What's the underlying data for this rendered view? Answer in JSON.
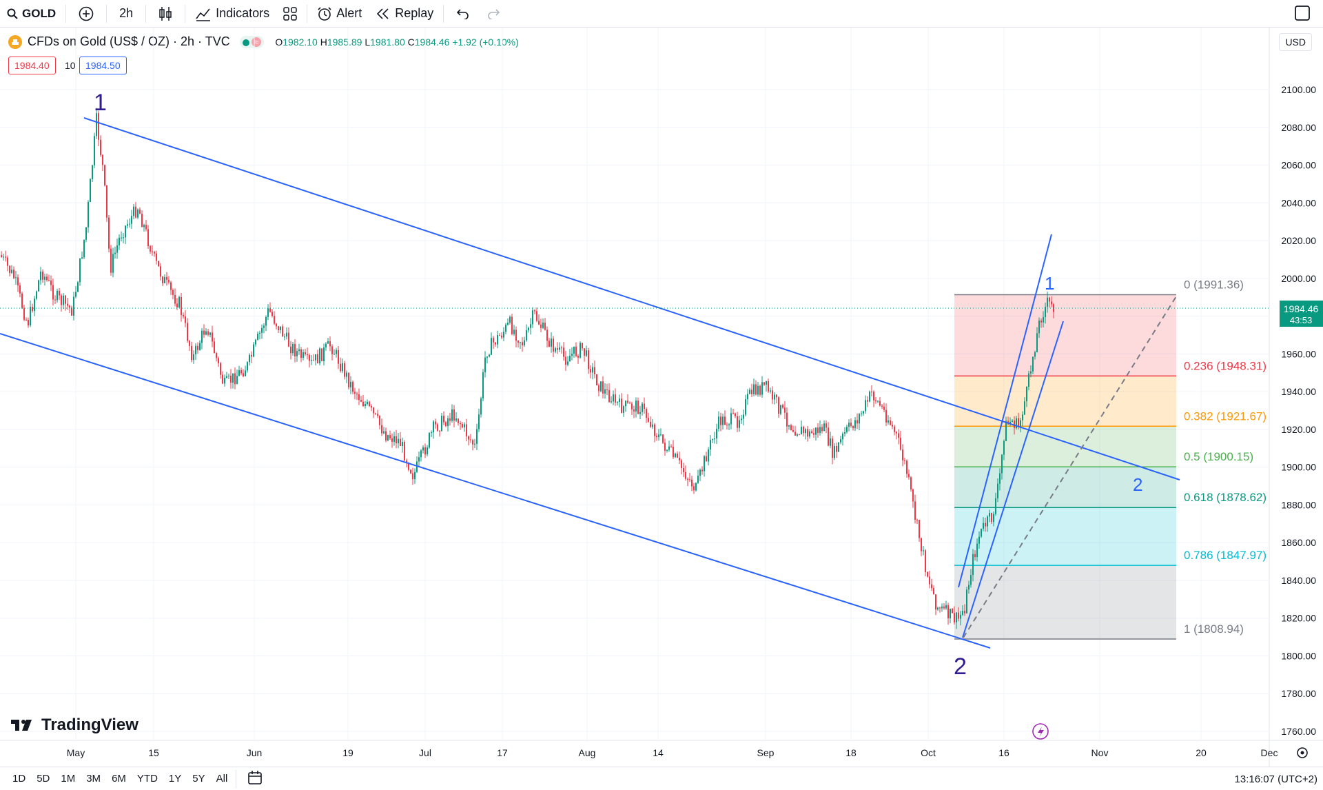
{
  "toolbar": {
    "symbol": "GOLD",
    "interval": "2h",
    "indicators_label": "Indicators",
    "alert_label": "Alert",
    "replay_label": "Replay"
  },
  "legend": {
    "title": "CFDs on Gold (US$ / OZ) · 2h · TVC",
    "open_label": "O",
    "open": "1982.10",
    "high_label": "H",
    "high": "1985.89",
    "low_label": "L",
    "low": "1981.80",
    "close_label": "C",
    "close": "1984.46",
    "change": "+1.92 (+0.10%)"
  },
  "bid": "1984.40",
  "spread": "10",
  "ask": "1984.50",
  "currency": "USD",
  "last_price": "1984.46",
  "countdown": "43:53",
  "time_axis": [
    "May",
    "15",
    "Jun",
    "19",
    "Jul",
    "17",
    "Aug",
    "14",
    "Sep",
    "18",
    "Oct",
    "16",
    "Nov",
    "20",
    "Dec"
  ],
  "price_axis": [
    "2100.00",
    "2080.00",
    "2060.00",
    "2040.00",
    "2020.00",
    "2000.00",
    "1980.00",
    "1960.00",
    "1940.00",
    "1920.00",
    "1900.00",
    "1880.00",
    "1860.00",
    "1840.00",
    "1820.00",
    "1800.00",
    "1780.00",
    "1760.00"
  ],
  "fib_levels": [
    {
      "label": "0 (1991.36)",
      "price": 1991.36,
      "color": "#787b86"
    },
    {
      "label": "0.236 (1948.31)",
      "price": 1948.31,
      "color": "#f23645"
    },
    {
      "label": "0.382 (1921.67)",
      "price": 1921.67,
      "color": "#ff9800"
    },
    {
      "label": "0.5 (1900.15)",
      "price": 1900.15,
      "color": "#4caf50"
    },
    {
      "label": "0.618 (1878.62)",
      "price": 1878.62,
      "color": "#089981"
    },
    {
      "label": "0.786 (1847.97)",
      "price": 1847.97,
      "color": "#00bcd4"
    },
    {
      "label": "1 (1808.94)",
      "price": 1808.94,
      "color": "#787b86"
    }
  ],
  "wave_labels": {
    "major_1": "1",
    "major_2": "2",
    "minor_1": "1",
    "minor_2": "2"
  },
  "brand": "TradingView",
  "ranges": [
    "1D",
    "5D",
    "1M",
    "3M",
    "6M",
    "YTD",
    "1Y",
    "5Y",
    "All"
  ],
  "clock": "13:16:07 (UTC+2)",
  "colors": {
    "up": "#089981",
    "down": "#f23645",
    "channel": "#2962ff",
    "wave": "#311b92"
  }
}
